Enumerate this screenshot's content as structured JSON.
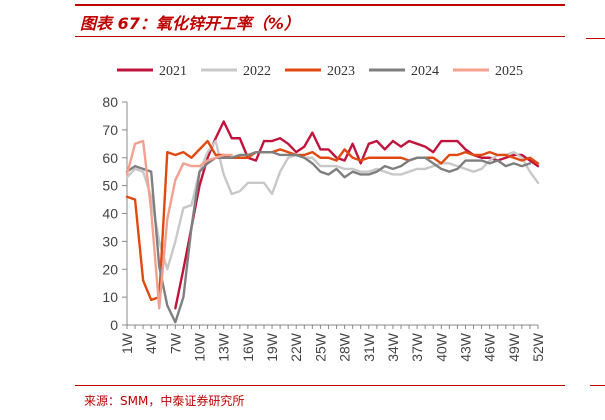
{
  "header": {
    "title": "图表 67：氧化锌开工率（%）"
  },
  "footer": {
    "source": "来源：SMM，中泰证券研究所"
  },
  "chart_data": {
    "type": "line",
    "title": "图表 67：氧化锌开工率（%）",
    "xlabel": "",
    "ylabel": "",
    "ylim": [
      0,
      80
    ],
    "yticks": [
      0,
      10,
      20,
      30,
      40,
      50,
      60,
      70,
      80
    ],
    "x": [
      "1W",
      "2W",
      "3W",
      "4W",
      "5W",
      "6W",
      "7W",
      "8W",
      "9W",
      "10W",
      "11W",
      "12W",
      "13W",
      "14W",
      "15W",
      "16W",
      "17W",
      "18W",
      "19W",
      "20W",
      "21W",
      "22W",
      "23W",
      "24W",
      "25W",
      "26W",
      "27W",
      "28W",
      "29W",
      "30W",
      "31W",
      "32W",
      "33W",
      "34W",
      "35W",
      "36W",
      "37W",
      "38W",
      "39W",
      "40W",
      "41W",
      "42W",
      "43W",
      "44W",
      "45W",
      "46W",
      "47W",
      "48W",
      "49W",
      "50W",
      "51W",
      "52W"
    ],
    "xticks": [
      "1W",
      "4W",
      "7W",
      "10W",
      "13W",
      "16W",
      "19W",
      "22W",
      "25W",
      "28W",
      "31W",
      "34W",
      "37W",
      "40W",
      "43W",
      "46W",
      "49W",
      "52W"
    ],
    "grid": false,
    "legend_position": "top",
    "series": [
      {
        "name": "2021",
        "color": "#c0143c",
        "values": [
          null,
          null,
          null,
          null,
          null,
          null,
          6,
          20,
          35,
          50,
          60,
          67,
          73,
          67,
          67,
          60,
          59,
          66,
          66,
          67,
          65,
          62,
          64,
          69,
          63,
          63,
          60,
          59,
          65,
          58,
          65,
          66,
          63,
          66,
          64,
          66,
          65,
          64,
          62,
          66,
          66,
          66,
          63,
          61,
          60,
          60,
          59,
          60,
          61,
          61,
          59,
          57
        ]
      },
      {
        "name": "2022",
        "color": "#c8c8c8",
        "values": [
          53,
          56,
          55,
          46,
          30,
          20,
          30,
          42,
          43,
          55,
          62,
          66,
          54,
          47,
          48,
          51,
          51,
          51,
          47,
          55,
          60,
          61,
          60,
          60,
          57,
          57,
          57,
          56,
          56,
          55,
          55,
          56,
          55,
          54,
          54,
          55,
          56,
          56,
          57,
          58,
          58,
          57,
          56,
          55,
          56,
          59,
          61,
          61,
          62,
          60,
          55,
          51
        ]
      },
      {
        "name": "2023",
        "color": "#e04a10",
        "values": [
          46,
          45,
          16,
          9,
          10,
          62,
          61,
          62,
          60,
          63,
          66,
          61,
          61,
          60,
          60,
          60,
          62,
          62,
          62,
          63,
          62,
          61,
          61,
          62,
          60,
          60,
          59,
          63,
          60,
          59,
          60,
          60,
          60,
          60,
          60,
          59,
          60,
          60,
          60,
          58,
          61,
          61,
          62,
          61,
          61,
          62,
          61,
          61,
          60,
          59,
          60,
          58
        ]
      },
      {
        "name": "2024",
        "color": "#7f7f7f",
        "values": [
          55,
          57,
          56,
          55,
          21,
          7,
          1,
          10,
          35,
          55,
          58,
          60,
          60,
          60,
          61,
          61,
          62,
          62,
          62,
          61,
          61,
          61,
          60,
          58,
          55,
          54,
          56,
          53,
          55,
          54,
          54,
          55,
          57,
          56,
          57,
          59,
          60,
          60,
          58,
          56,
          55,
          56,
          59,
          59,
          59,
          58,
          59,
          57,
          58,
          57,
          58,
          null
        ]
      },
      {
        "name": "2025",
        "color": "#f4a090",
        "values": [
          54,
          65,
          66,
          41,
          6,
          38,
          52,
          58,
          57,
          57,
          59,
          60,
          61,
          61,
          null,
          null,
          null,
          null,
          null,
          null,
          null,
          null,
          null,
          null,
          null,
          null,
          null,
          null,
          null,
          null,
          null,
          null,
          null,
          null,
          null,
          null,
          null,
          null,
          null,
          null,
          null,
          null,
          null,
          null,
          null,
          null,
          null,
          null,
          null,
          null,
          null,
          null
        ]
      }
    ]
  }
}
